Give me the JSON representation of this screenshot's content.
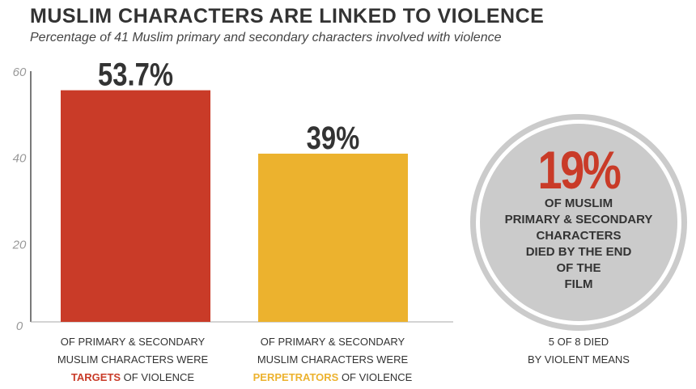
{
  "title": "MUSLIM CHARACTERS ARE LINKED TO VIOLENCE",
  "subtitle": "Percentage of 41 Muslim primary and secondary characters involved with violence",
  "chart_data": {
    "type": "bar",
    "categories": [
      "Targets of violence",
      "Perpetrators of violence"
    ],
    "values": [
      53.7,
      39
    ],
    "data_labels": [
      "53.7%",
      "39%"
    ],
    "colors": [
      "#c93b28",
      "#ecb22e"
    ],
    "ylim": [
      0,
      60
    ],
    "yticks": [
      0,
      20,
      40,
      60
    ],
    "ytick_labels": [
      "0",
      "20",
      "40",
      "60"
    ],
    "captions": [
      {
        "line1": "OF PRIMARY & SECONDARY",
        "line2": "MUSLIM CHARACTERS WERE",
        "highlight": "TARGETS",
        "rest": " OF VIOLENCE"
      },
      {
        "line1": "OF PRIMARY & SECONDARY",
        "line2": "MUSLIM CHARACTERS WERE",
        "highlight": "PERPETRATORS",
        "rest": " OF VIOLENCE"
      }
    ]
  },
  "callout": {
    "value": "19%",
    "lines": [
      "OF MUSLIM",
      "PRIMARY & SECONDARY",
      "CHARACTERS",
      "DIED BY THE END",
      "OF THE",
      "FILM"
    ],
    "note_line1": "5 OF 8 DIED",
    "note_line2": "BY VIOLENT MEANS",
    "circle_color": "#cbcbcb"
  }
}
